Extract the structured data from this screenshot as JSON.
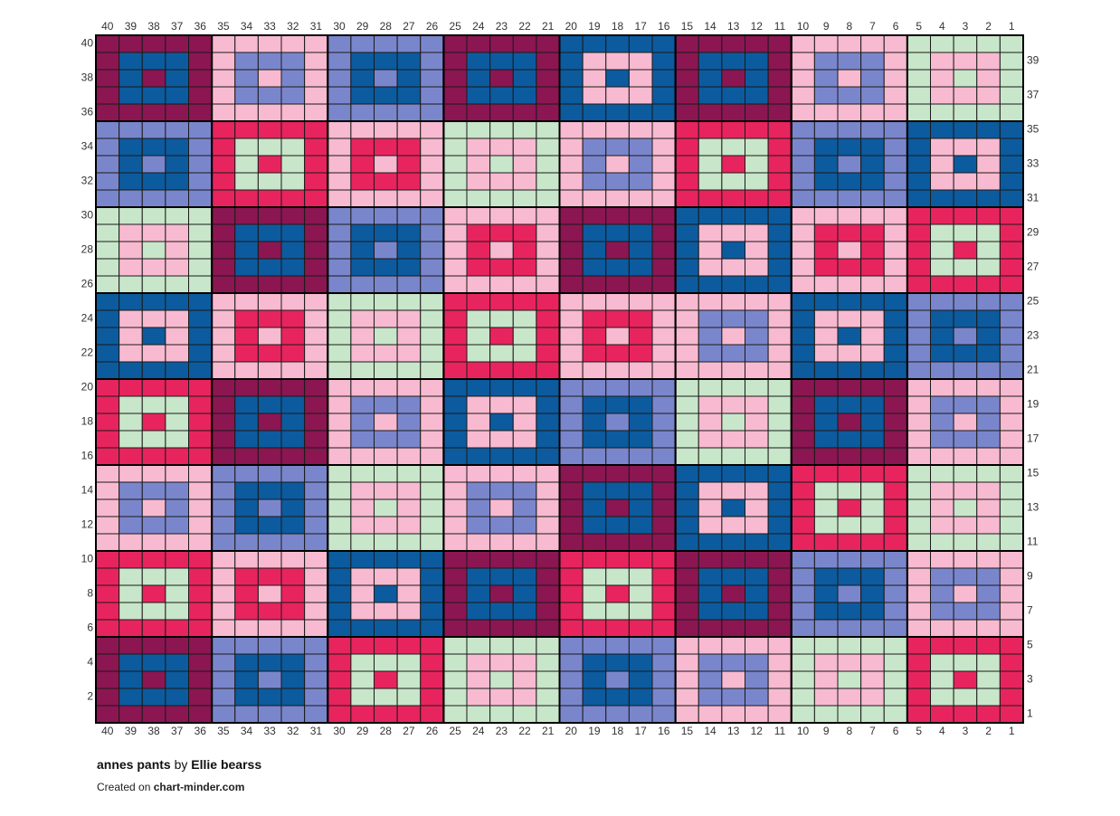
{
  "chart": {
    "title": "annes pants",
    "by": "by",
    "author": "Ellie bearss",
    "created_on": "Created on",
    "site": "chart-minder.com",
    "columns": [
      40,
      39,
      38,
      37,
      36,
      35,
      34,
      33,
      32,
      31,
      30,
      29,
      28,
      27,
      26,
      25,
      24,
      23,
      22,
      21,
      20,
      19,
      18,
      17,
      16,
      15,
      14,
      13,
      12,
      11,
      10,
      9,
      8,
      7,
      6,
      5,
      4,
      3,
      2,
      1
    ],
    "rows": [
      40,
      39,
      38,
      37,
      36,
      35,
      34,
      33,
      32,
      31,
      30,
      29,
      28,
      27,
      26,
      25,
      24,
      23,
      22,
      21,
      20,
      19,
      18,
      17,
      16,
      15,
      14,
      13,
      12,
      11,
      10,
      9,
      8,
      7,
      6,
      5,
      4,
      3,
      2,
      1
    ],
    "palette": {
      "M": "#8b1652",
      "B": "#0c5b9e",
      "L": "#7a86cc",
      "P": "#f8bad0",
      "R": "#e8245f",
      "G": "#c8e6c9"
    },
    "blocks": [
      [
        "MB",
        "PL",
        "LB",
        "MB",
        "BP",
        "MB",
        "PL",
        "GP"
      ],
      [
        "LB",
        "RG",
        "PR",
        "GP",
        "PL",
        "RG",
        "LB",
        "BP"
      ],
      [
        "GP",
        "MB",
        "LB",
        "PR",
        "MB",
        "BP",
        "PR",
        "RG"
      ],
      [
        "BP",
        "PR",
        "GP",
        "RG",
        "PR",
        "PL",
        "BP",
        "LB"
      ],
      [
        "RG",
        "MB",
        "PL",
        "BP",
        "LB",
        "GP",
        "MB",
        "PL"
      ],
      [
        "PL",
        "LB",
        "GP",
        "PL",
        "MB",
        "BP",
        "RG",
        "GP"
      ],
      [
        "RG",
        "PR",
        "BP",
        "MB",
        "RG",
        "MB",
        "LB",
        "PL"
      ],
      [
        "MB",
        "LB",
        "RG",
        "GP",
        "LB",
        "PL",
        "GP",
        "RG"
      ]
    ]
  }
}
